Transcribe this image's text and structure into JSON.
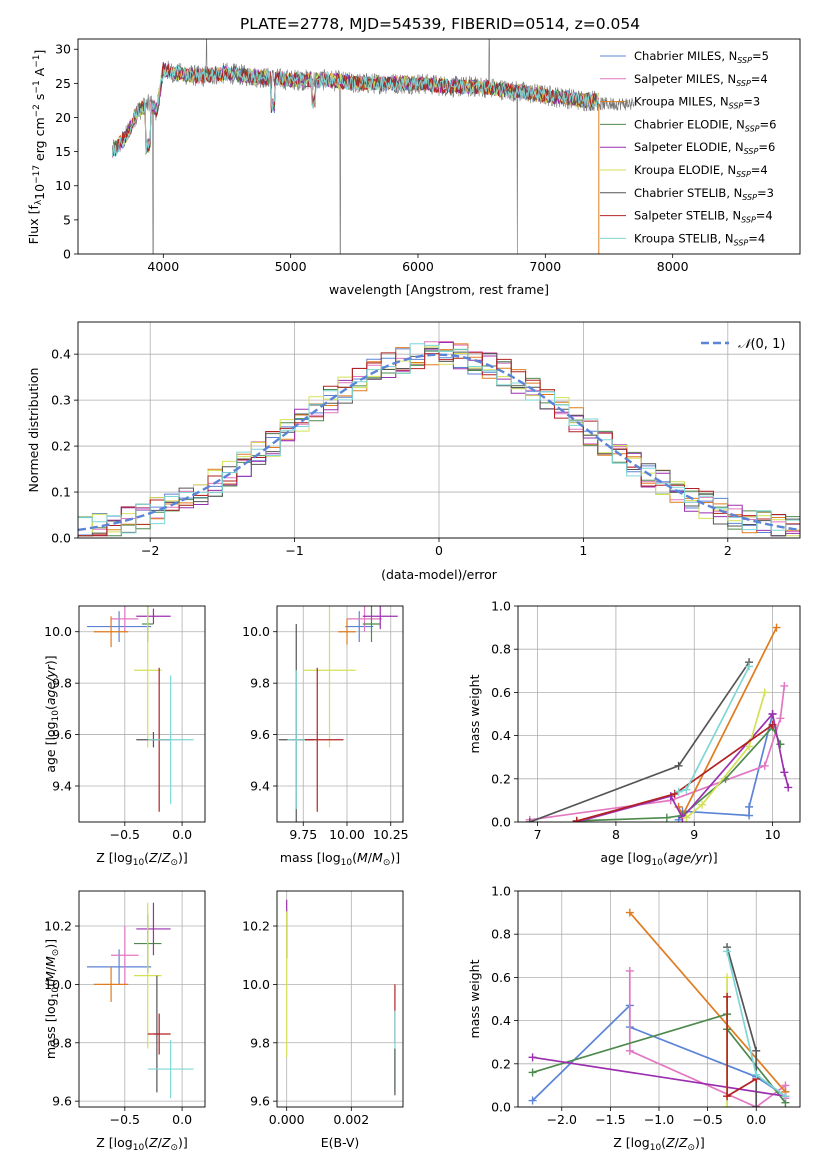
{
  "figure": {
    "title": "PLATE=2778, MJD=54539, FIBERID=0514, z=0.054"
  },
  "colors": {
    "Chabrier MILES": "#5b84d6",
    "Salpeter MILES": "#e377c2",
    "Kroupa MILES": "#e07b1f",
    "Chabrier ELODIE": "#4e8a4e",
    "Salpeter ELODIE": "#9b2fb0",
    "Kroupa ELODIE": "#d4e157",
    "Chabrier STELIB": "#555555",
    "Salpeter STELIB": "#b22222",
    "Kroupa STELIB": "#7fd6d6",
    "data": "#707070"
  },
  "chart_data": [
    {
      "type": "line",
      "id": "spectrum",
      "title": "PLATE=2778, MJD=54539, FIBERID=0514, z=0.054",
      "xlabel": "wavelength [Angstrom, rest frame]",
      "ylabel": "Flux [f_λ 10^-17 erg cm^-2 s^-1 A^-1]",
      "xlim": [
        3330,
        9000
      ],
      "ylim": [
        0,
        31.5
      ],
      "xticks": [
        4000,
        5000,
        6000,
        7000,
        8000
      ],
      "yticks": [
        0,
        5,
        10,
        15,
        20,
        25,
        30
      ],
      "grid": false,
      "legend_position": "top-right",
      "legend": [
        {
          "name": "Chabrier MILES",
          "nssp": "5"
        },
        {
          "name": "Salpeter MILES",
          "nssp": "4"
        },
        {
          "name": "Kroupa MILES",
          "nssp": "3"
        },
        {
          "name": "Chabrier ELODIE",
          "nssp": "6"
        },
        {
          "name": "Salpeter ELODIE",
          "nssp": "6"
        },
        {
          "name": "Kroupa ELODIE",
          "nssp": "4"
        },
        {
          "name": "Chabrier STELIB",
          "nssp": "3"
        },
        {
          "name": "Salpeter STELIB",
          "nssp": "4"
        },
        {
          "name": "Kroupa STELIB",
          "nssp": "4"
        }
      ],
      "continuum_x": [
        3600,
        3700,
        3800,
        3900,
        3950,
        4000,
        4100,
        4300,
        4500,
        4700,
        5000,
        5300,
        5500,
        5800,
        6000,
        6300,
        6500,
        6700,
        6900,
        7100,
        7300,
        7500
      ],
      "continuum_y": [
        15,
        17,
        21,
        22,
        21,
        27,
        26.5,
        26,
        26.5,
        26,
        25.5,
        25.5,
        25,
        25,
        25,
        24.5,
        24.5,
        24,
        23.5,
        23,
        22.5,
        22.5
      ],
      "x_end_models": 7420,
      "x_end_data": 7700
    },
    {
      "type": "histogram",
      "id": "residuals",
      "xlabel": "(data-model)/error",
      "ylabel": "Normed distribution",
      "xlim": [
        -2.5,
        2.5
      ],
      "ylim": [
        0,
        0.47
      ],
      "xticks": [
        -2,
        -1,
        0,
        1,
        2
      ],
      "yticks": [
        0,
        0.1,
        0.2,
        0.3,
        0.4
      ],
      "grid": true,
      "legend_position": "top-right",
      "legend": [
        {
          "name": "N(0,1)",
          "style": "dashed"
        }
      ],
      "bin_width": 0.1,
      "bins_start": -2.5
    },
    {
      "type": "scatter",
      "id": "age_vs_Z",
      "xlabel": "Z [log10(Z/Z⊙)]",
      "ylabel": "age [log10(age/yr)]",
      "xlim": [
        -0.9,
        0.2
      ],
      "ylim": [
        9.26,
        10.1
      ],
      "xticks": [
        -0.5,
        0.0
      ],
      "yticks": [
        9.4,
        9.6,
        9.8,
        10.0
      ],
      "grid": true,
      "points": [
        {
          "model": "Chabrier MILES",
          "x": -0.55,
          "y": 10.02,
          "xerr": 0.28,
          "yerr": 0.06
        },
        {
          "model": "Salpeter MILES",
          "x": -0.5,
          "y": 10.05,
          "xerr": 0.12,
          "yerr": 0.05
        },
        {
          "model": "Kroupa MILES",
          "x": -0.62,
          "y": 10.0,
          "xerr": 0.15,
          "yerr": 0.06
        },
        {
          "model": "Chabrier ELODIE",
          "x": -0.3,
          "y": 10.03,
          "xerr": 0.05,
          "yerr": 0.07
        },
        {
          "model": "Salpeter ELODIE",
          "x": -0.25,
          "y": 10.06,
          "xerr": 0.15,
          "yerr": 0.03
        },
        {
          "model": "Kroupa ELODIE",
          "x": -0.3,
          "y": 9.85,
          "xerr": 0.12,
          "yerr": 0.3
        },
        {
          "model": "Chabrier STELIB",
          "x": -0.25,
          "y": 9.58,
          "xerr": 0.15,
          "yerr": 0.03
        },
        {
          "model": "Salpeter STELIB",
          "x": -0.2,
          "y": 9.58,
          "xerr": 0.1,
          "yerr": 0.28
        },
        {
          "model": "Kroupa STELIB",
          "x": -0.1,
          "y": 9.58,
          "xerr": 0.2,
          "yerr": 0.25
        }
      ]
    },
    {
      "type": "scatter",
      "id": "age_vs_mass",
      "xlabel": "mass [log10(M/M⊙)]",
      "ylabel": "",
      "xlim": [
        9.6,
        10.32
      ],
      "ylim": [
        9.26,
        10.1
      ],
      "xticks": [
        9.75,
        10.0,
        10.25
      ],
      "yticks": [
        9.4,
        9.6,
        9.8,
        10.0
      ],
      "grid": true,
      "points": [
        {
          "model": "Chabrier MILES",
          "x": 10.07,
          "y": 10.02,
          "xerr": 0.08,
          "yerr": 0.06
        },
        {
          "model": "Salpeter MILES",
          "x": 10.1,
          "y": 10.05,
          "xerr": 0.1,
          "yerr": 0.05
        },
        {
          "model": "Kroupa MILES",
          "x": 10.0,
          "y": 10.0,
          "xerr": 0.05,
          "yerr": 0.05
        },
        {
          "model": "Chabrier ELODIE",
          "x": 10.14,
          "y": 10.03,
          "xerr": 0.05,
          "yerr": 0.07
        },
        {
          "model": "Salpeter ELODIE",
          "x": 10.19,
          "y": 10.06,
          "xerr": 0.1,
          "yerr": 0.05
        },
        {
          "model": "Kroupa ELODIE",
          "x": 9.9,
          "y": 9.85,
          "xerr": 0.15,
          "yerr": 0.3
        },
        {
          "model": "Chabrier STELIB",
          "x": 9.71,
          "y": 9.58,
          "xerr": 0.1,
          "yerr": 0.45
        },
        {
          "model": "Salpeter STELIB",
          "x": 9.83,
          "y": 9.58,
          "xerr": 0.15,
          "yerr": 0.28
        },
        {
          "model": "Kroupa STELIB",
          "x": 9.71,
          "y": 9.58,
          "xerr": 0.05,
          "yerr": 0.27
        }
      ]
    },
    {
      "type": "line",
      "id": "mass_weight_vs_age",
      "xlabel": "age [log10(age/yr)]",
      "ylabel": "mass weight",
      "xlim": [
        6.75,
        10.35
      ],
      "ylim": [
        0,
        1.0
      ],
      "xticks": [
        7,
        8,
        9,
        10
      ],
      "yticks": [
        0.0,
        0.2,
        0.4,
        0.6,
        0.8,
        1.0
      ],
      "grid": true,
      "series": [
        {
          "model": "Chabrier MILES",
          "x": [
            8.8,
            8.85,
            9.7,
            9.7,
            10.0
          ],
          "y": [
            0.01,
            0.05,
            0.03,
            0.07,
            0.5
          ]
        },
        {
          "model": "Salpeter MILES",
          "x": [
            6.9,
            8.7,
            9.9,
            10.1,
            10.15
          ],
          "y": [
            0.01,
            0.1,
            0.26,
            0.48,
            0.63
          ]
        },
        {
          "model": "Kroupa MILES",
          "x": [
            8.8,
            8.85,
            10.05
          ],
          "y": [
            0.07,
            0.03,
            0.9
          ]
        },
        {
          "model": "Chabrier ELODIE",
          "x": [
            7.5,
            8.65,
            8.85,
            9.4,
            10.0,
            10.1
          ],
          "y": [
            0.005,
            0.02,
            0.03,
            0.2,
            0.44,
            0.36
          ]
        },
        {
          "model": "Salpeter ELODIE",
          "x": [
            7.5,
            8.7,
            8.85,
            10.0,
            10.15,
            10.2
          ],
          "y": [
            0.0,
            0.12,
            0.02,
            0.5,
            0.23,
            0.16
          ]
        },
        {
          "model": "Kroupa ELODIE",
          "x": [
            8.9,
            9.1,
            9.7,
            9.9
          ],
          "y": [
            0.02,
            0.08,
            0.35,
            0.6
          ]
        },
        {
          "model": "Chabrier STELIB",
          "x": [
            6.9,
            8.8,
            9.7
          ],
          "y": [
            0.0,
            0.26,
            0.74
          ]
        },
        {
          "model": "Salpeter STELIB",
          "x": [
            7.5,
            8.75,
            10.0
          ],
          "y": [
            0.005,
            0.13,
            0.45
          ]
        },
        {
          "model": "Kroupa STELIB",
          "x": [
            8.8,
            8.9,
            9.7
          ],
          "y": [
            0.14,
            0.15,
            0.72
          ]
        }
      ]
    },
    {
      "type": "scatter",
      "id": "mass_vs_Z",
      "xlabel": "Z [log10(Z/Z⊙)]",
      "ylabel": "mass [log10(M/M⊙)]",
      "xlim": [
        -0.9,
        0.2
      ],
      "ylim": [
        9.58,
        10.32
      ],
      "xticks": [
        -0.5,
        0.0
      ],
      "yticks": [
        9.6,
        9.8,
        10.0,
        10.2
      ],
      "grid": true,
      "points": [
        {
          "model": "Chabrier MILES",
          "x": -0.55,
          "y": 10.06,
          "xerr": 0.28,
          "yerr": 0.06
        },
        {
          "model": "Salpeter MILES",
          "x": -0.5,
          "y": 10.1,
          "xerr": 0.12,
          "yerr": 0.1
        },
        {
          "model": "Kroupa MILES",
          "x": -0.62,
          "y": 10.0,
          "xerr": 0.15,
          "yerr": 0.06
        },
        {
          "model": "Chabrier ELODIE",
          "x": -0.3,
          "y": 10.14,
          "xerr": 0.12,
          "yerr": 0.1
        },
        {
          "model": "Salpeter ELODIE",
          "x": -0.25,
          "y": 10.19,
          "xerr": 0.15,
          "yerr": 0.09
        },
        {
          "model": "Kroupa ELODIE",
          "x": -0.3,
          "y": 10.03,
          "xerr": 0.12,
          "yerr": 0.25
        },
        {
          "model": "Chabrier STELIB",
          "x": -0.22,
          "y": 9.83,
          "xerr": 0.03,
          "yerr": 0.2
        },
        {
          "model": "Salpeter STELIB",
          "x": -0.2,
          "y": 9.83,
          "xerr": 0.1,
          "yerr": 0.07
        },
        {
          "model": "Kroupa STELIB",
          "x": -0.1,
          "y": 9.71,
          "xerr": 0.2,
          "yerr": 0.1
        }
      ]
    },
    {
      "type": "scatter",
      "id": "mass_vs_ebv",
      "xlabel": "E(B-V)",
      "ylabel": "",
      "xlim": [
        -0.0003,
        0.0036
      ],
      "ylim": [
        9.58,
        10.32
      ],
      "xticks": [
        0.0,
        0.002
      ],
      "yticks": [
        9.6,
        9.8,
        10.0,
        10.2
      ],
      "grid": true,
      "points": [
        {
          "model": "Salpeter ELODIE",
          "x": 0.0,
          "y": 10.19,
          "xerr": 0,
          "yerr": 0.1
        },
        {
          "model": "Kroupa ELODIE",
          "x": 0.0,
          "y": 10.0,
          "xerr": 0,
          "yerr": 0.25
        },
        {
          "model": "Salpeter STELIB",
          "x": 0.00335,
          "y": 9.9,
          "xerr": 0,
          "yerr": 0.1
        },
        {
          "model": "Kroupa STELIB",
          "x": 0.00335,
          "y": 9.77,
          "xerr": 0,
          "yerr": 0.14
        },
        {
          "model": "Chabrier STELIB",
          "x": 0.00335,
          "y": 9.7,
          "xerr": 0,
          "yerr": 0.08
        }
      ]
    },
    {
      "type": "line",
      "id": "mass_weight_vs_Z",
      "xlabel": "Z [log10(Z/Z⊙)]",
      "ylabel": "mass weight",
      "xlim": [
        -2.45,
        0.45
      ],
      "ylim": [
        0,
        1.0
      ],
      "xticks": [
        -2.0,
        -1.5,
        -1.0,
        -0.5,
        0.0
      ],
      "yticks": [
        0.0,
        0.2,
        0.4,
        0.6,
        0.8,
        1.0
      ],
      "grid": true,
      "series": [
        {
          "model": "Chabrier MILES",
          "x": [
            -2.3,
            -1.3,
            -1.3,
            0.0,
            0.3
          ],
          "y": [
            0.03,
            0.47,
            0.37,
            0.14,
            0.05
          ]
        },
        {
          "model": "Salpeter MILES",
          "x": [
            -1.3,
            -1.3,
            0.0,
            0.3,
            0.3
          ],
          "y": [
            0.63,
            0.26,
            0.0,
            0.1,
            0.04
          ]
        },
        {
          "model": "Kroupa MILES",
          "x": [
            -1.3,
            0.3
          ],
          "y": [
            0.9,
            0.07
          ]
        },
        {
          "model": "Chabrier ELODIE",
          "x": [
            -2.3,
            -0.3,
            -0.3,
            0.3
          ],
          "y": [
            0.16,
            0.43,
            0.36,
            0.02
          ]
        },
        {
          "model": "Salpeter ELODIE",
          "x": [
            -2.3,
            0.3
          ],
          "y": [
            0.23,
            0.05
          ]
        },
        {
          "model": "Kroupa ELODIE",
          "x": [
            -0.3,
            -0.3
          ],
          "y": [
            0.6,
            0.0
          ]
        },
        {
          "model": "Chabrier STELIB",
          "x": [
            -0.3,
            0.0,
            0.0
          ],
          "y": [
            0.74,
            0.26,
            0.0
          ]
        },
        {
          "model": "Salpeter STELIB",
          "x": [
            -0.3,
            -0.3,
            0.0
          ],
          "y": [
            0.51,
            0.05,
            0.13
          ]
        },
        {
          "model": "Kroupa STELIB",
          "x": [
            -0.3,
            0.0,
            0.3
          ],
          "y": [
            0.72,
            0.15,
            0.05
          ]
        }
      ]
    }
  ]
}
